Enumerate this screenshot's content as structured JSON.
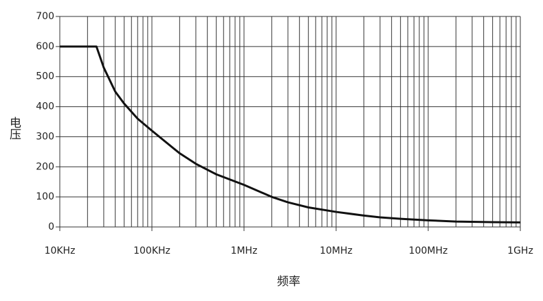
{
  "chart_data": {
    "type": "line",
    "x_label": "频率",
    "y_label": "电压",
    "x": [
      10000,
      25000,
      30000,
      40000,
      50000,
      70000,
      100000,
      200000,
      300000,
      500000,
      1000000,
      2000000,
      3000000,
      5000000,
      10000000,
      20000000,
      30000000,
      50000000,
      100000000,
      200000000,
      500000000,
      1000000000
    ],
    "series": [
      {
        "color": "#111111",
        "values": [
          600,
          600,
          530,
          450,
          410,
          360,
          320,
          245,
          210,
          175,
          140,
          100,
          82,
          65,
          50,
          38,
          32,
          27,
          22,
          18,
          16,
          15
        ]
      }
    ],
    "xlim": [
      10000,
      1000000000
    ],
    "ylim": [
      0,
      700
    ],
    "x_log": true,
    "grid": true,
    "xticks": [
      {
        "value": 10000,
        "label": "10KHz"
      },
      {
        "value": 100000,
        "label": "100KHz"
      },
      {
        "value": 1000000,
        "label": "1MHz"
      },
      {
        "value": 10000000,
        "label": "10MHz"
      },
      {
        "value": 100000000,
        "label": "100MHz"
      },
      {
        "value": 1000000000,
        "label": "1GHz"
      }
    ],
    "x_minor_ticks": [
      20000,
      30000,
      40000,
      50000,
      60000,
      70000,
      80000,
      90000,
      200000,
      300000,
      400000,
      500000,
      600000,
      700000,
      800000,
      900000,
      2000000,
      3000000,
      4000000,
      5000000,
      6000000,
      7000000,
      8000000,
      9000000,
      20000000,
      30000000,
      40000000,
      50000000,
      60000000,
      70000000,
      80000000,
      90000000,
      200000000,
      300000000,
      400000000,
      500000000,
      600000000,
      700000000,
      800000000,
      900000000
    ],
    "yticks": [
      0,
      100,
      200,
      300,
      400,
      500,
      600,
      700
    ]
  }
}
